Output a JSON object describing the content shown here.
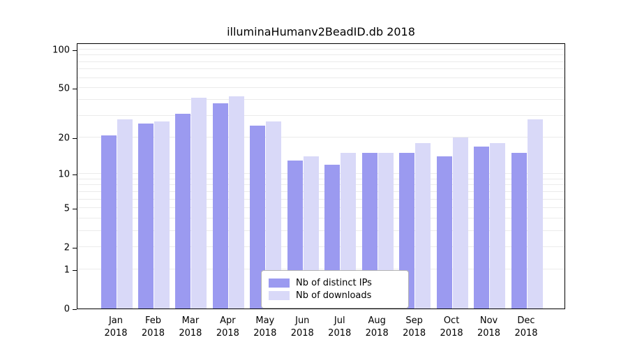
{
  "chart_data": {
    "type": "bar",
    "title": "illuminaHumanv2BeadID.db 2018",
    "categories": [
      "Jan",
      "Feb",
      "Mar",
      "Apr",
      "May",
      "Jun",
      "Jul",
      "Aug",
      "Sep",
      "Oct",
      "Nov",
      "Dec"
    ],
    "year_label": "2018",
    "series": [
      {
        "name": "Nb of distinct IPs",
        "color": "#9b9af0",
        "values": [
          21,
          26,
          31,
          38,
          25,
          13,
          12,
          15,
          15,
          14,
          17,
          15
        ]
      },
      {
        "name": "Nb of downloads",
        "color": "#d9d9f8",
        "values": [
          28,
          27,
          42,
          43,
          27,
          14,
          15,
          15,
          18,
          20,
          18,
          28
        ]
      }
    ],
    "y_ticks": [
      0,
      1,
      2,
      5,
      10,
      20,
      50,
      100
    ],
    "minor_gridlines": [
      1,
      2,
      3,
      4,
      5,
      6,
      7,
      8,
      9,
      10,
      20,
      30,
      40,
      50,
      60,
      70,
      80,
      90,
      100
    ],
    "scale": "log10(1+x)",
    "ylim": [
      0,
      100
    ],
    "grid": true,
    "legend_position": "bottom-center",
    "colors": {
      "axis": "#000000",
      "gridline": "#ebebeb",
      "legend_border": "#b3b3b3"
    }
  }
}
